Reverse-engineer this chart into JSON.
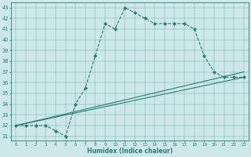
{
  "xlabel": "Humidex (Indice chaleur)",
  "bg_color": "#cce8ea",
  "line_color": "#2a7d74",
  "xlim_min": -0.5,
  "xlim_max": 23.5,
  "ylim_min": 30.6,
  "ylim_max": 43.5,
  "yticks": [
    31,
    32,
    33,
    34,
    35,
    36,
    37,
    38,
    39,
    40,
    41,
    42,
    43
  ],
  "xticks": [
    0,
    1,
    2,
    3,
    4,
    5,
    6,
    7,
    8,
    9,
    10,
    11,
    12,
    13,
    14,
    15,
    16,
    17,
    18,
    19,
    20,
    21,
    22,
    23
  ],
  "line1_x": [
    0,
    1,
    2,
    3,
    4,
    5,
    6,
    7,
    8,
    9,
    10,
    11,
    12,
    13,
    14,
    15,
    16,
    17,
    18,
    19,
    20,
    21,
    22,
    23
  ],
  "line1_y": [
    32,
    32,
    32,
    32,
    31.5,
    31,
    34,
    35.5,
    38.5,
    41.5,
    41,
    43,
    42.5,
    42,
    41.5,
    41.5,
    41.5,
    41.5,
    41,
    38.5,
    37,
    36.5,
    36.5,
    36.5
  ],
  "line1_marker_x": [
    0,
    1,
    2,
    3,
    4,
    5,
    6,
    7,
    8,
    9,
    10,
    11,
    12,
    13,
    14,
    15,
    16,
    17,
    18,
    19,
    20,
    21,
    22,
    23
  ],
  "line1_marker_y": [
    32,
    32,
    32,
    32,
    31.5,
    31,
    34,
    35.5,
    38.5,
    41.5,
    41,
    43,
    42.5,
    42,
    41.5,
    41.5,
    41.5,
    41.5,
    41,
    38.5,
    37,
    36.5,
    36.5,
    36.5
  ],
  "line2_x": [
    0,
    23
  ],
  "line2_y": [
    32,
    37.0
  ],
  "line3_x": [
    0,
    23
  ],
  "line3_y": [
    32,
    36.5
  ]
}
